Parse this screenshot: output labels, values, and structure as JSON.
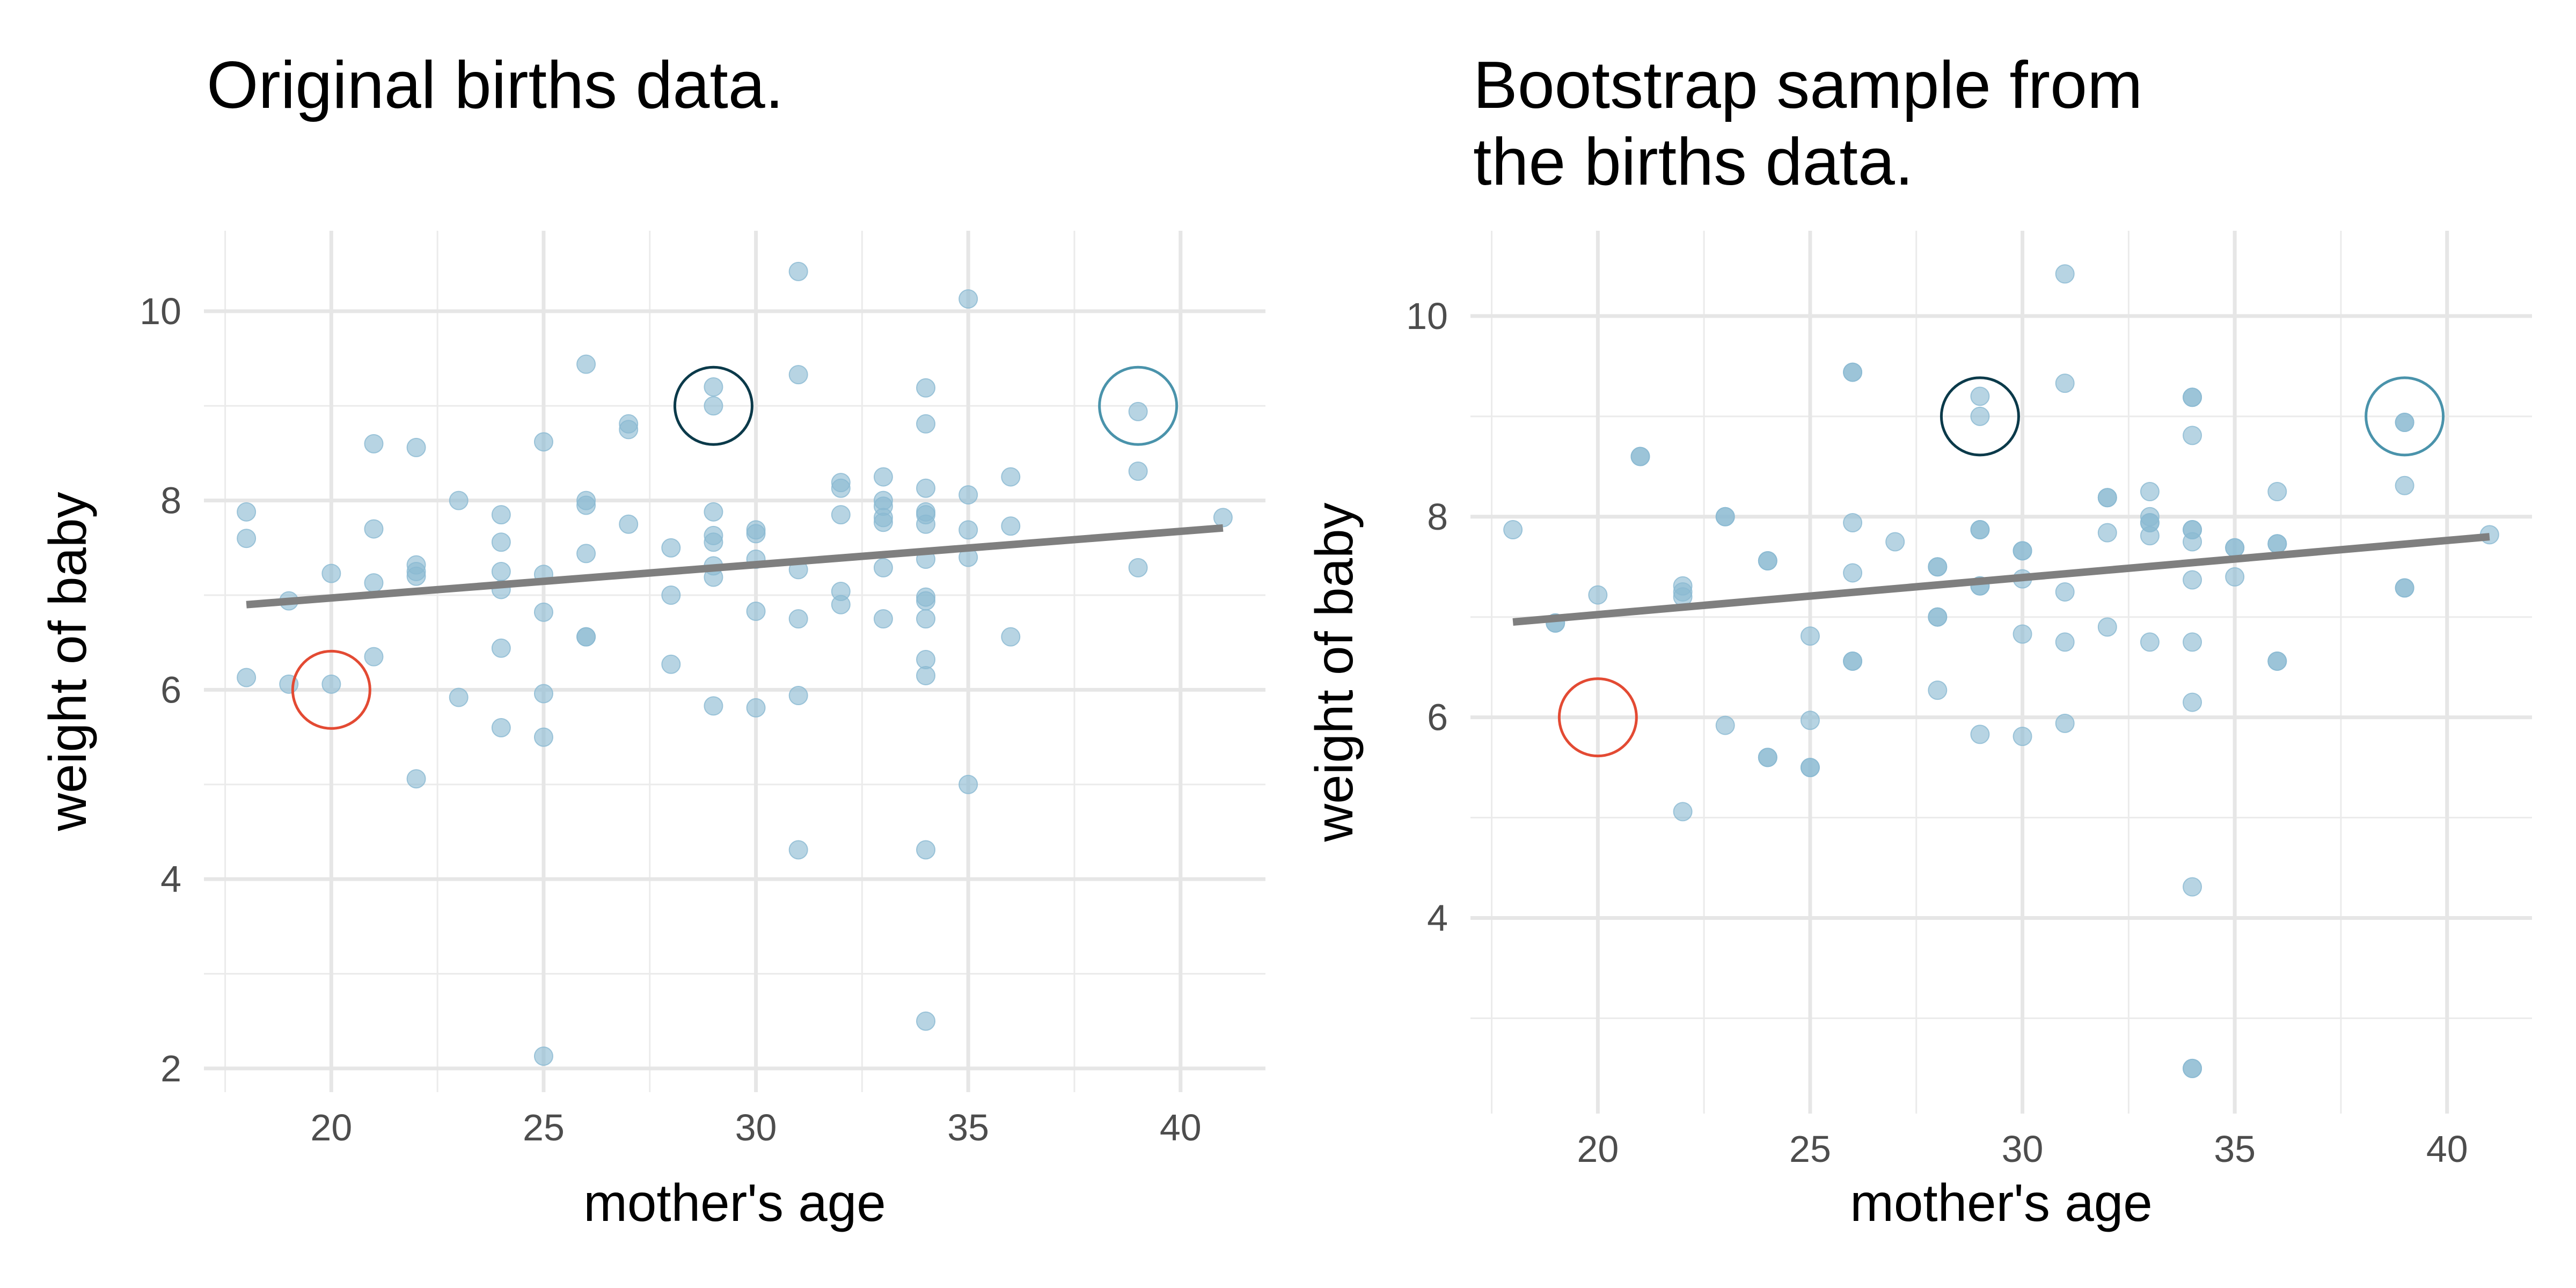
{
  "chart_data": [
    {
      "type": "scatter",
      "title": "Original births data.",
      "xlabel": "mother's age",
      "ylabel": "weight of baby",
      "xlim": [
        17,
        42
      ],
      "ylim": [
        1.75,
        10.85
      ],
      "xticks": [
        20,
        25,
        30,
        35,
        40
      ],
      "yticks": [
        2,
        4,
        6,
        8,
        10
      ],
      "grid": true,
      "points": [
        [
          18,
          7.88
        ],
        [
          18,
          7.6
        ],
        [
          18,
          6.13
        ],
        [
          19,
          6.94
        ],
        [
          19,
          6.06
        ],
        [
          20,
          7.23
        ],
        [
          20,
          6.06
        ],
        [
          21,
          8.6
        ],
        [
          21,
          7.7
        ],
        [
          21,
          7.13
        ],
        [
          21,
          6.35
        ],
        [
          22,
          8.56
        ],
        [
          22,
          7.32
        ],
        [
          22,
          7.25
        ],
        [
          22,
          7.2
        ],
        [
          22,
          5.06
        ],
        [
          23,
          8.0
        ],
        [
          23,
          5.92
        ],
        [
          24,
          7.85
        ],
        [
          24,
          7.56
        ],
        [
          24,
          7.25
        ],
        [
          24,
          7.06
        ],
        [
          24,
          6.44
        ],
        [
          24,
          5.6
        ],
        [
          25,
          8.62
        ],
        [
          25,
          7.22
        ],
        [
          25,
          6.82
        ],
        [
          25,
          5.96
        ],
        [
          25,
          5.5
        ],
        [
          25,
          2.13
        ],
        [
          26,
          9.44
        ],
        [
          26,
          8.0
        ],
        [
          26,
          7.95
        ],
        [
          26,
          7.44
        ],
        [
          26,
          6.56
        ],
        [
          26,
          6.56
        ],
        [
          27,
          8.81
        ],
        [
          27,
          8.75
        ],
        [
          27,
          7.75
        ],
        [
          28,
          7.5
        ],
        [
          28,
          7.0
        ],
        [
          28,
          6.27
        ],
        [
          29,
          9.2
        ],
        [
          29,
          9.0
        ],
        [
          29,
          7.88
        ],
        [
          29,
          7.63
        ],
        [
          29,
          7.56
        ],
        [
          29,
          7.31
        ],
        [
          29,
          7.19
        ],
        [
          29,
          5.83
        ],
        [
          30,
          7.69
        ],
        [
          30,
          7.65
        ],
        [
          30,
          7.38
        ],
        [
          30,
          6.83
        ],
        [
          30,
          5.81
        ],
        [
          31,
          10.42
        ],
        [
          31,
          9.33
        ],
        [
          31,
          7.27
        ],
        [
          31,
          6.75
        ],
        [
          31,
          5.94
        ],
        [
          31,
          4.31
        ],
        [
          32,
          8.19
        ],
        [
          32,
          8.13
        ],
        [
          32,
          7.85
        ],
        [
          32,
          7.04
        ],
        [
          32,
          6.9
        ],
        [
          33,
          8.25
        ],
        [
          33,
          8.0
        ],
        [
          33,
          7.94
        ],
        [
          33,
          7.82
        ],
        [
          33,
          7.77
        ],
        [
          33,
          7.29
        ],
        [
          33,
          6.75
        ],
        [
          34,
          9.19
        ],
        [
          34,
          8.81
        ],
        [
          34,
          8.13
        ],
        [
          34,
          7.88
        ],
        [
          34,
          7.85
        ],
        [
          34,
          7.75
        ],
        [
          34,
          7.38
        ],
        [
          34,
          6.98
        ],
        [
          34,
          6.94
        ],
        [
          34,
          6.75
        ],
        [
          34,
          6.32
        ],
        [
          34,
          6.15
        ],
        [
          34,
          4.31
        ],
        [
          34,
          2.5
        ],
        [
          35,
          10.13
        ],
        [
          35,
          8.06
        ],
        [
          35,
          7.69
        ],
        [
          35,
          7.4
        ],
        [
          35,
          5.0
        ],
        [
          36,
          8.25
        ],
        [
          36,
          7.73
        ],
        [
          36,
          6.56
        ],
        [
          39,
          8.94
        ],
        [
          39,
          8.31
        ],
        [
          39,
          7.29
        ],
        [
          41,
          7.82
        ]
      ],
      "fit_line": {
        "x": [
          18,
          41
        ],
        "y": [
          6.9,
          7.71
        ]
      },
      "highlights": [
        {
          "x": 20,
          "y": 6.0,
          "color": "#e34a33"
        },
        {
          "x": 29,
          "y": 9.0,
          "color": "#0b3a4a"
        },
        {
          "x": 39,
          "y": 9.0,
          "color": "#4a93ab"
        }
      ],
      "point_color": "#8ab9d2",
      "line_color": "#7f7f7f"
    },
    {
      "type": "scatter",
      "title": "Bootstrap sample from\nthe births data.",
      "xlabel": "mother's age",
      "ylabel": "weight of baby",
      "xlim": [
        17,
        42
      ],
      "ylim": [
        2.05,
        10.85
      ],
      "xticks": [
        20,
        25,
        30,
        35,
        40
      ],
      "yticks": [
        4,
        6,
        8,
        10
      ],
      "grid": true,
      "points": [
        [
          18,
          7.87
        ],
        [
          19,
          6.94
        ],
        [
          19,
          6.94
        ],
        [
          20,
          7.22
        ],
        [
          21,
          8.6
        ],
        [
          21,
          8.6
        ],
        [
          22,
          7.31
        ],
        [
          22,
          7.25
        ],
        [
          22,
          7.2
        ],
        [
          22,
          5.06
        ],
        [
          23,
          8.0
        ],
        [
          23,
          8.0
        ],
        [
          23,
          5.92
        ],
        [
          24,
          7.56
        ],
        [
          24,
          7.56
        ],
        [
          24,
          5.6
        ],
        [
          24,
          5.6
        ],
        [
          25,
          6.81
        ],
        [
          25,
          5.97
        ],
        [
          25,
          5.5
        ],
        [
          25,
          5.5
        ],
        [
          26,
          9.44
        ],
        [
          26,
          9.44
        ],
        [
          26,
          7.94
        ],
        [
          26,
          7.44
        ],
        [
          26,
          6.56
        ],
        [
          26,
          6.56
        ],
        [
          27,
          7.75
        ],
        [
          28,
          7.5
        ],
        [
          28,
          7.5
        ],
        [
          28,
          7.0
        ],
        [
          28,
          7.0
        ],
        [
          28,
          6.27
        ],
        [
          29,
          9.2
        ],
        [
          29,
          9.0
        ],
        [
          29,
          7.87
        ],
        [
          29,
          7.87
        ],
        [
          29,
          7.31
        ],
        [
          29,
          7.31
        ],
        [
          29,
          5.83
        ],
        [
          30,
          7.66
        ],
        [
          30,
          7.66
        ],
        [
          30,
          7.38
        ],
        [
          30,
          6.83
        ],
        [
          30,
          5.81
        ],
        [
          31,
          10.42
        ],
        [
          31,
          9.33
        ],
        [
          31,
          7.25
        ],
        [
          31,
          6.75
        ],
        [
          31,
          5.94
        ],
        [
          32,
          8.19
        ],
        [
          32,
          8.19
        ],
        [
          32,
          7.84
        ],
        [
          32,
          6.9
        ],
        [
          33,
          8.25
        ],
        [
          33,
          8.0
        ],
        [
          33,
          7.94
        ],
        [
          33,
          7.94
        ],
        [
          33,
          7.81
        ],
        [
          33,
          6.75
        ],
        [
          34,
          9.19
        ],
        [
          34,
          9.19
        ],
        [
          34,
          8.81
        ],
        [
          34,
          7.87
        ],
        [
          34,
          7.87
        ],
        [
          34,
          7.75
        ],
        [
          34,
          7.37
        ],
        [
          34,
          6.75
        ],
        [
          34,
          6.15
        ],
        [
          34,
          4.31
        ],
        [
          34,
          2.5
        ],
        [
          34,
          2.5
        ],
        [
          35,
          7.69
        ],
        [
          35,
          7.69
        ],
        [
          35,
          7.4
        ],
        [
          36,
          8.25
        ],
        [
          36,
          7.73
        ],
        [
          36,
          7.73
        ],
        [
          36,
          6.56
        ],
        [
          36,
          6.56
        ],
        [
          39,
          8.94
        ],
        [
          39,
          8.94
        ],
        [
          39,
          8.31
        ],
        [
          39,
          7.29
        ],
        [
          39,
          7.29
        ],
        [
          41,
          7.82
        ]
      ],
      "fit_line": {
        "x": [
          18,
          41
        ],
        "y": [
          6.95,
          7.8
        ]
      },
      "highlights": [
        {
          "x": 20,
          "y": 6.0,
          "color": "#e34a33"
        },
        {
          "x": 29,
          "y": 9.0,
          "color": "#0b3a4a"
        },
        {
          "x": 39,
          "y": 9.0,
          "color": "#4a93ab"
        }
      ],
      "point_color": "#8ab9d2",
      "line_color": "#7f7f7f"
    }
  ]
}
